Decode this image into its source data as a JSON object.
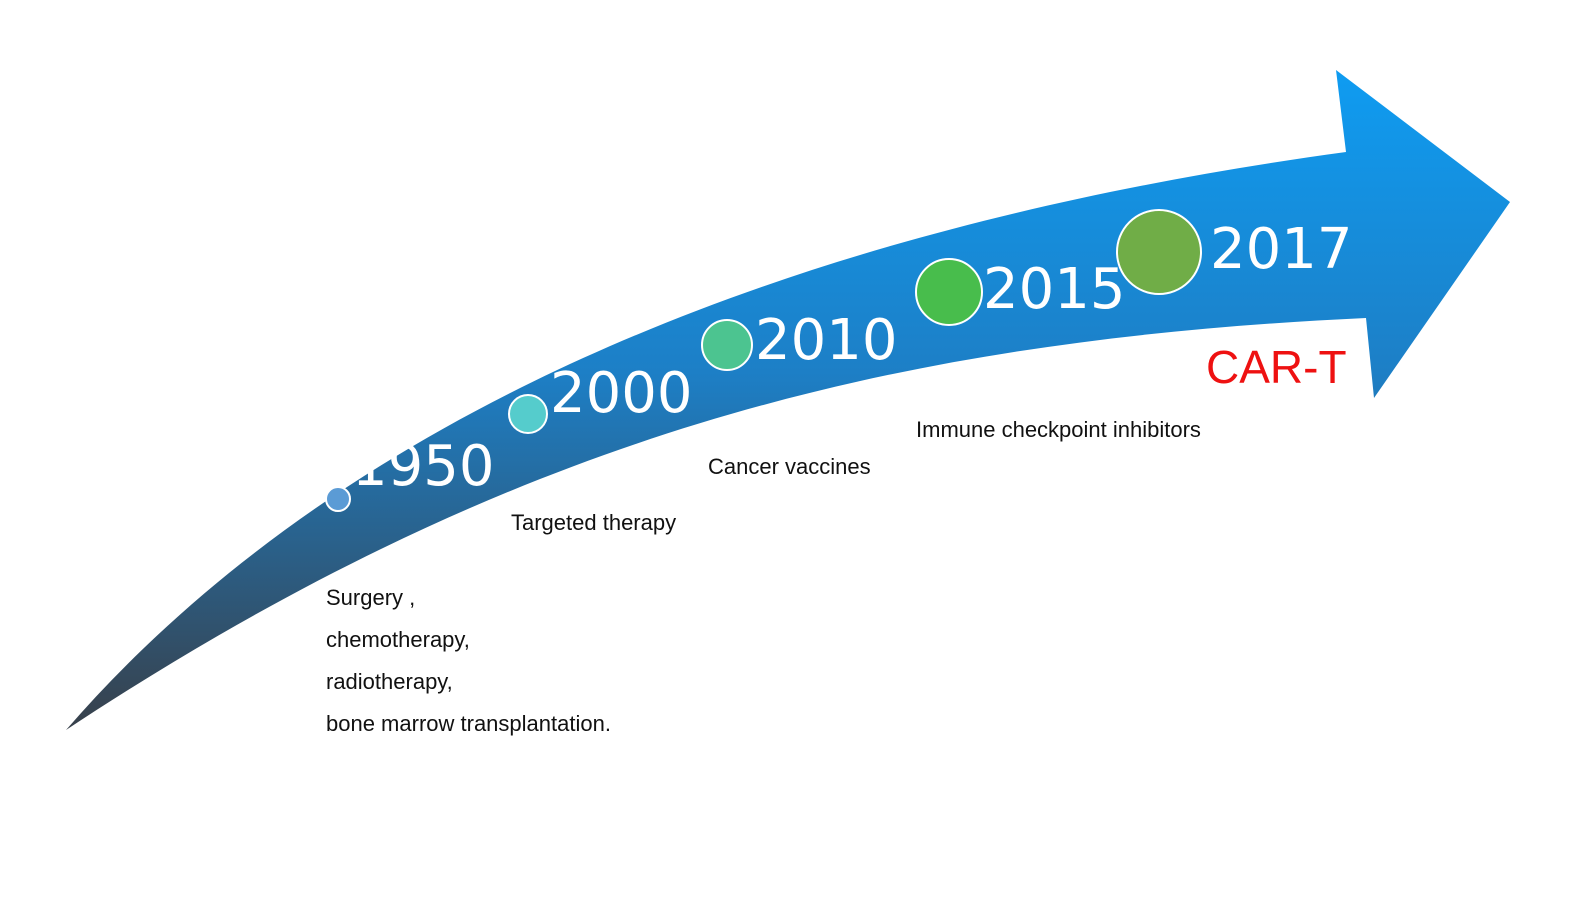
{
  "colors": {
    "arrow_top": "#0f9bf0",
    "arrow_mid": "#1d7fc6",
    "arrow_bottom": "#38404a",
    "year_text": "#ffffff",
    "desc_text": "#111111",
    "highlight_text": "#ee1111"
  },
  "milestones": [
    {
      "year": "1950",
      "dot_color": "#5b9bd5"
    },
    {
      "year": "2000",
      "dot_color": "#55cccc"
    },
    {
      "year": "2010",
      "dot_color": "#4cc490"
    },
    {
      "year": "2015",
      "dot_color": "#48bd4c"
    },
    {
      "year": "2017",
      "dot_color": "#70ad47"
    }
  ],
  "descriptions": {
    "d1950": [
      "Surgery ,",
      "chemotherapy,",
      "radiotherapy,",
      "bone marrow transplantation."
    ],
    "d2000": "Targeted therapy",
    "d2010": "Cancer vaccines",
    "d2015": "Immune checkpoint inhibitors"
  },
  "highlight": "CAR-T"
}
